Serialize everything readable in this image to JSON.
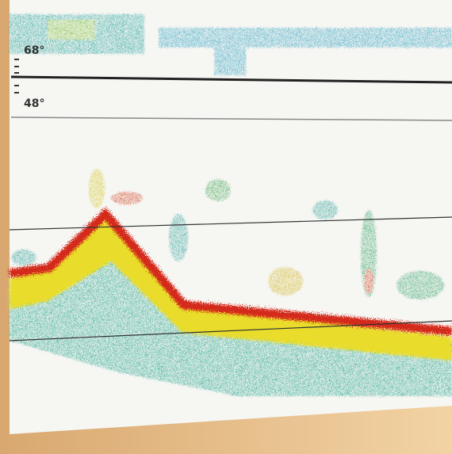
{
  "temperature_scale": {
    "upper": "68°",
    "lower": "48°"
  }
}
